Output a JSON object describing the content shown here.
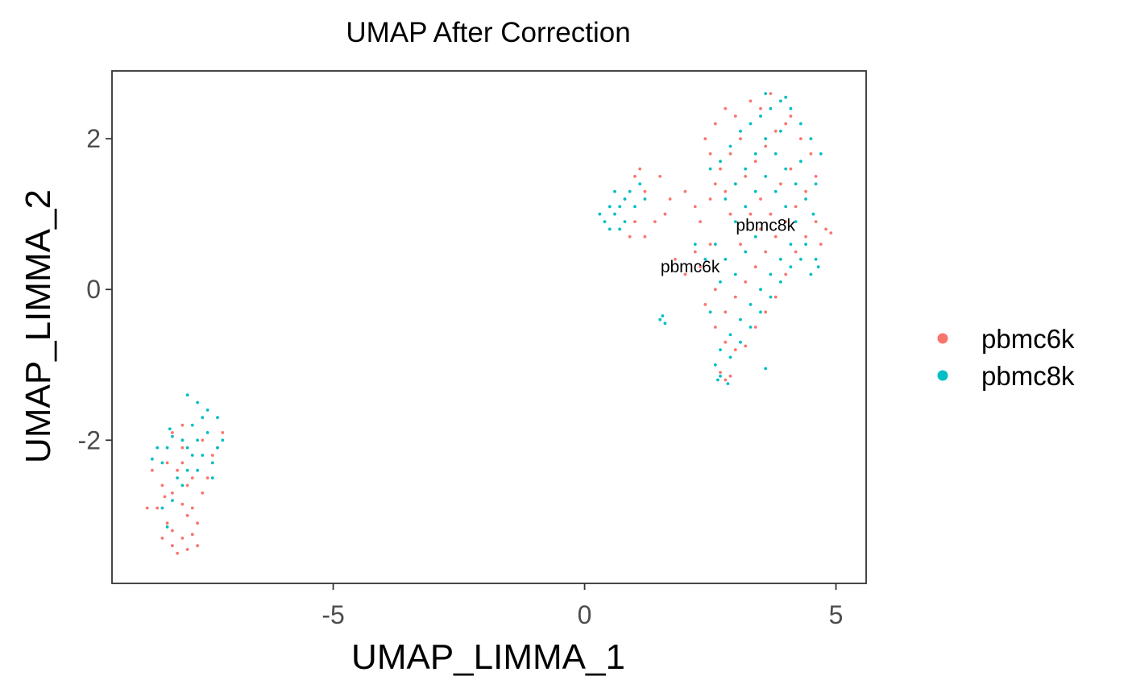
{
  "chart_data": {
    "type": "scatter",
    "title": "UMAP After Correction",
    "xlabel": "UMAP_LIMMA_1",
    "ylabel": "UMAP_LIMMA_2",
    "xlim": [
      -9.4,
      5.6
    ],
    "ylim": [
      -3.9,
      2.9
    ],
    "x_ticks": [
      -5,
      0,
      5
    ],
    "x_tick_labels": [
      "-5",
      "0",
      "5"
    ],
    "y_ticks": [
      -2,
      0,
      2
    ],
    "y_tick_labels": [
      "-2",
      "0",
      "2"
    ],
    "grid": false,
    "legend": {
      "position": "right",
      "entries": [
        {
          "name": "pbmc6k",
          "color": "#F8766D"
        },
        {
          "name": "pbmc8k",
          "color": "#00BFC4"
        }
      ]
    },
    "annotations": [
      {
        "text": "pbmc8k",
        "x": 3.6,
        "y": 0.85
      },
      {
        "text": "pbmc6k",
        "x": 2.1,
        "y": 0.3
      }
    ],
    "series": [
      {
        "name": "pbmc6k",
        "color": "#F8766D",
        "points": [
          [
            -8.2,
            -3.4
          ],
          [
            -8.1,
            -3.5
          ],
          [
            -8.0,
            -3.3
          ],
          [
            -7.9,
            -3.45
          ],
          [
            -8.3,
            -3.1
          ],
          [
            -8.5,
            -2.9
          ],
          [
            -8.7,
            -2.9
          ],
          [
            -8.4,
            -2.6
          ],
          [
            -8.2,
            -2.7
          ],
          [
            -8.0,
            -2.85
          ],
          [
            -7.8,
            -2.9
          ],
          [
            -7.7,
            -3.1
          ],
          [
            -7.6,
            -2.7
          ],
          [
            -7.8,
            -2.5
          ],
          [
            -8.1,
            -2.4
          ],
          [
            -8.3,
            -2.3
          ],
          [
            -8.6,
            -2.4
          ],
          [
            -7.5,
            -2.5
          ],
          [
            -7.4,
            -2.2
          ],
          [
            -7.3,
            -2.1
          ],
          [
            -7.2,
            -1.9
          ],
          [
            -8.0,
            -2.1
          ],
          [
            -7.9,
            -3.0
          ],
          [
            -8.2,
            -3.2
          ],
          [
            -7.7,
            -3.4
          ],
          [
            -8.4,
            -3.3
          ],
          [
            -7.9,
            -2.6
          ],
          [
            -8.0,
            -2.3
          ],
          [
            -7.6,
            -2.0
          ],
          [
            -8.2,
            -1.9
          ],
          [
            -8.0,
            -1.8
          ],
          [
            -7.8,
            -3.25
          ],
          [
            -8.35,
            -2.75
          ],
          [
            1.0,
            1.5
          ],
          [
            1.2,
            1.3
          ],
          [
            1.1,
            1.6
          ],
          [
            1.5,
            1.5
          ],
          [
            1.7,
            1.2
          ],
          [
            2.0,
            1.3
          ],
          [
            2.2,
            1.1
          ],
          [
            2.3,
            0.9
          ],
          [
            2.5,
            1.2
          ],
          [
            2.6,
            1.4
          ],
          [
            2.8,
            1.3
          ],
          [
            3.0,
            1.4
          ],
          [
            3.2,
            1.5
          ],
          [
            3.4,
            1.7
          ],
          [
            3.6,
            1.9
          ],
          [
            3.8,
            2.1
          ],
          [
            4.0,
            2.2
          ],
          [
            3.1,
            2.0
          ],
          [
            2.9,
            1.8
          ],
          [
            2.7,
            1.6
          ],
          [
            2.5,
            1.8
          ],
          [
            2.4,
            2.0
          ],
          [
            2.6,
            2.2
          ],
          [
            2.8,
            2.4
          ],
          [
            3.0,
            2.3
          ],
          [
            3.3,
            2.5
          ],
          [
            3.5,
            2.4
          ],
          [
            3.7,
            2.6
          ],
          [
            4.1,
            2.3
          ],
          [
            4.3,
            2.0
          ],
          [
            4.5,
            1.8
          ],
          [
            4.6,
            1.5
          ],
          [
            4.4,
            1.3
          ],
          [
            4.2,
            1.1
          ],
          [
            4.0,
            0.9
          ],
          [
            3.8,
            0.7
          ],
          [
            3.6,
            0.5
          ],
          [
            3.4,
            0.3
          ],
          [
            3.2,
            0.1
          ],
          [
            3.0,
            -0.1
          ],
          [
            2.8,
            -0.3
          ],
          [
            2.6,
            -0.5
          ],
          [
            2.8,
            -0.7
          ],
          [
            3.0,
            -0.8
          ],
          [
            3.2,
            -0.75
          ],
          [
            3.4,
            -0.5
          ],
          [
            3.6,
            -0.3
          ],
          [
            3.8,
            -0.1
          ],
          [
            4.0,
            0.2
          ],
          [
            4.2,
            0.5
          ],
          [
            4.4,
            0.7
          ],
          [
            4.6,
            0.9
          ],
          [
            4.8,
            0.8
          ],
          [
            4.9,
            0.75
          ],
          [
            4.7,
            0.6
          ],
          [
            2.7,
            -1.1
          ],
          [
            2.8,
            -1.2
          ],
          [
            2.9,
            -1.15
          ],
          [
            2.0,
            0.2
          ],
          [
            2.2,
            0.5
          ],
          [
            1.8,
            0.4
          ],
          [
            0.8,
            1.2
          ],
          [
            1.0,
            0.9
          ],
          [
            1.2,
            0.7
          ],
          [
            0.9,
            0.7
          ],
          [
            1.6,
            1.0
          ],
          [
            1.4,
            0.9
          ],
          [
            3.3,
            1.0
          ],
          [
            3.5,
            1.2
          ],
          [
            2.9,
            1.0
          ],
          [
            3.1,
            0.6
          ],
          [
            2.5,
            0.6
          ],
          [
            2.3,
            0.3
          ],
          [
            4.1,
            1.6
          ],
          [
            3.9,
            1.4
          ],
          [
            3.5,
            0.8
          ],
          [
            3.7,
            1.0
          ],
          [
            2.6,
            0.0
          ],
          [
            2.4,
            -0.2
          ]
        ]
      },
      {
        "name": "pbmc8k",
        "color": "#00BFC4",
        "points": [
          [
            -7.9,
            -1.4
          ],
          [
            -7.7,
            -1.5
          ],
          [
            -7.6,
            -1.7
          ],
          [
            -7.8,
            -1.8
          ],
          [
            -7.5,
            -1.9
          ],
          [
            -7.3,
            -2.1
          ],
          [
            -7.4,
            -2.3
          ],
          [
            -7.6,
            -2.2
          ],
          [
            -7.8,
            -2.2
          ],
          [
            -8.0,
            -2.0
          ],
          [
            -8.2,
            -1.95
          ],
          [
            -8.3,
            -2.1
          ],
          [
            -8.4,
            -2.3
          ],
          [
            -8.1,
            -2.5
          ],
          [
            -7.9,
            -2.4
          ],
          [
            -7.7,
            -2.4
          ],
          [
            -8.0,
            -2.6
          ],
          [
            -8.2,
            -2.8
          ],
          [
            -8.4,
            -2.9
          ],
          [
            -8.3,
            -3.15
          ],
          [
            -7.5,
            -1.6
          ],
          [
            -7.2,
            -2.0
          ],
          [
            -7.7,
            -2.0
          ],
          [
            -7.9,
            -2.1
          ],
          [
            -7.3,
            -1.7
          ],
          [
            -7.4,
            -2.5
          ],
          [
            -8.5,
            -2.1
          ],
          [
            -8.6,
            -2.25
          ],
          [
            -8.25,
            -1.85
          ],
          [
            0.3,
            1.0
          ],
          [
            0.4,
            0.9
          ],
          [
            0.5,
            1.1
          ],
          [
            0.6,
            1.0
          ],
          [
            0.7,
            0.8
          ],
          [
            0.8,
            1.2
          ],
          [
            0.9,
            1.3
          ],
          [
            1.0,
            1.1
          ],
          [
            0.6,
            1.3
          ],
          [
            0.7,
            1.1
          ],
          [
            1.2,
            1.2
          ],
          [
            1.1,
            1.4
          ],
          [
            0.5,
            0.8
          ],
          [
            0.8,
            0.9
          ],
          [
            1.5,
            -0.4
          ],
          [
            1.6,
            -0.45
          ],
          [
            1.55,
            -0.35
          ],
          [
            2.5,
            1.6
          ],
          [
            2.7,
            1.7
          ],
          [
            2.9,
            1.9
          ],
          [
            3.1,
            2.1
          ],
          [
            3.3,
            2.2
          ],
          [
            3.5,
            2.3
          ],
          [
            3.7,
            2.4
          ],
          [
            3.9,
            2.5
          ],
          [
            4.1,
            2.4
          ],
          [
            4.3,
            2.2
          ],
          [
            4.5,
            2.0
          ],
          [
            4.7,
            1.8
          ],
          [
            4.6,
            1.4
          ],
          [
            4.4,
            1.2
          ],
          [
            4.2,
            1.4
          ],
          [
            4.0,
            1.6
          ],
          [
            3.8,
            1.8
          ],
          [
            3.6,
            2.0
          ],
          [
            3.4,
            1.8
          ],
          [
            3.2,
            1.6
          ],
          [
            3.0,
            1.4
          ],
          [
            2.8,
            1.2
          ],
          [
            3.2,
            1.1
          ],
          [
            3.4,
            1.3
          ],
          [
            3.6,
            1.5
          ],
          [
            3.8,
            1.3
          ],
          [
            4.0,
            1.1
          ],
          [
            4.2,
            0.9
          ],
          [
            4.4,
            0.6
          ],
          [
            4.6,
            0.4
          ],
          [
            4.5,
            0.2
          ],
          [
            4.3,
            0.4
          ],
          [
            4.1,
            0.6
          ],
          [
            3.9,
            0.4
          ],
          [
            3.7,
            0.2
          ],
          [
            3.5,
            0.0
          ],
          [
            3.3,
            -0.2
          ],
          [
            3.1,
            -0.4
          ],
          [
            2.9,
            -0.6
          ],
          [
            2.7,
            -0.8
          ],
          [
            2.9,
            -0.9
          ],
          [
            3.1,
            -0.7
          ],
          [
            3.3,
            -0.5
          ],
          [
            3.5,
            -0.3
          ],
          [
            3.7,
            -0.1
          ],
          [
            3.9,
            0.1
          ],
          [
            4.1,
            0.3
          ],
          [
            2.6,
            -1.0
          ],
          [
            2.7,
            -1.15
          ],
          [
            2.85,
            -1.25
          ],
          [
            2.65,
            -1.2
          ],
          [
            3.6,
            -1.05
          ],
          [
            2.6,
            0.6
          ],
          [
            2.8,
            0.4
          ],
          [
            3.0,
            0.2
          ],
          [
            3.2,
            0.5
          ],
          [
            2.7,
            0.1
          ],
          [
            2.5,
            -0.3
          ],
          [
            3.9,
            2.1
          ],
          [
            4.3,
            1.7
          ],
          [
            3.6,
            2.6
          ],
          [
            4.0,
            2.55
          ],
          [
            4.55,
            1.0
          ],
          [
            4.65,
            0.3
          ],
          [
            3.4,
            0.7
          ],
          [
            3.0,
            0.9
          ],
          [
            2.4,
            0.4
          ],
          [
            2.2,
            0.6
          ]
        ]
      }
    ]
  }
}
